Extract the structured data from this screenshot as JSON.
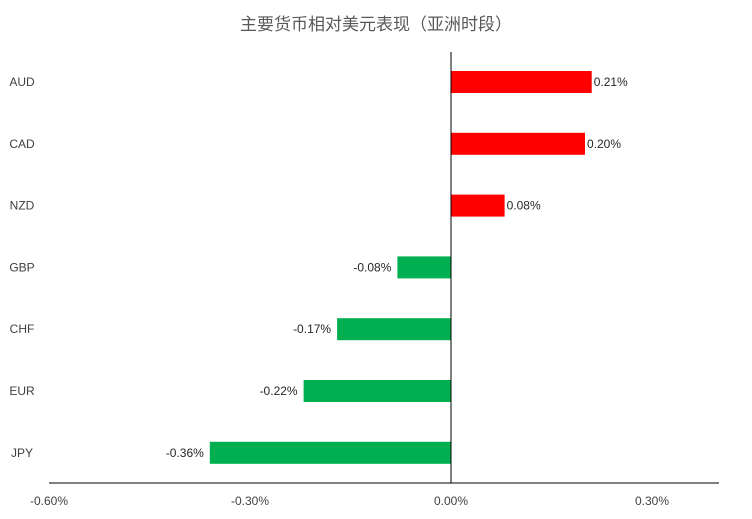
{
  "chart_data": {
    "type": "bar",
    "orientation": "horizontal",
    "title": "主要货币相对美元表现（亚洲时段）",
    "xlabel": "",
    "ylabel": "",
    "categories": [
      "AUD",
      "CAD",
      "NZD",
      "GBP",
      "CHF",
      "EUR",
      "JPY"
    ],
    "values": [
      0.21,
      0.2,
      0.08,
      -0.08,
      -0.17,
      -0.22,
      -0.36
    ],
    "data_labels": [
      "0.21%",
      "0.20%",
      "0.08%",
      "-0.08%",
      "-0.17%",
      "-0.22%",
      "-0.36%"
    ],
    "xlim": [
      -0.6,
      0.4
    ],
    "x_ticks": [
      -0.6,
      -0.3,
      0.0,
      0.3
    ],
    "x_tick_labels": [
      "-0.60%",
      "-0.30%",
      "0.00%",
      "0.30%"
    ],
    "positive_color": "#ff0000",
    "negative_color": "#00b050",
    "grid": false,
    "legend": "none"
  }
}
